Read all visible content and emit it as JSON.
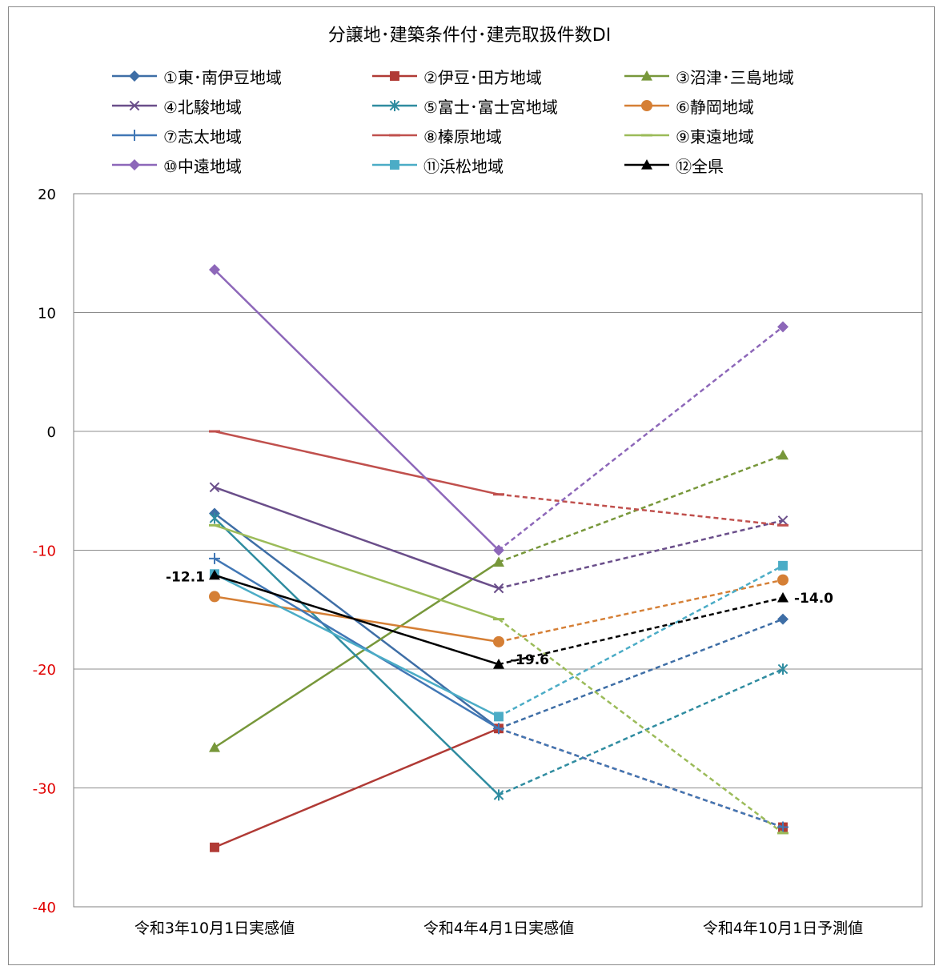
{
  "chart_data": {
    "type": "line",
    "title": "分譲地･建築条件付･建売取扱件数DI",
    "categories": [
      "令和3年10月1日実感値",
      "令和4年4月1日実感値",
      "令和4年10月1日予測値"
    ],
    "ylim": [
      -40,
      20
    ],
    "yticks": [
      "20",
      "10",
      "0",
      "-10",
      "-20",
      "-30",
      "-40"
    ],
    "grid": true,
    "legend_placement": "top",
    "forecast_style": "dashed",
    "series": [
      {
        "name": "①東･南伊豆地域",
        "values": [
          -6.9,
          -25.0,
          -15.8
        ],
        "color": "#3e6ea6",
        "marker": "diamond"
      },
      {
        "name": "②伊豆･田方地域",
        "values": [
          -35.0,
          -25.0,
          -33.3
        ],
        "color": "#b03a35",
        "marker": "square"
      },
      {
        "name": "③沼津･三島地域",
        "values": [
          -26.6,
          -11.0,
          -2.0
        ],
        "color": "#77973a",
        "marker": "triangle"
      },
      {
        "name": "④北駿地域",
        "values": [
          -4.7,
          -13.2,
          -7.5
        ],
        "color": "#6a4e8a",
        "marker": "x"
      },
      {
        "name": "⑤富士･富士宮地域",
        "values": [
          -7.3,
          -30.6,
          -20.0
        ],
        "color": "#2f8ca0",
        "marker": "star"
      },
      {
        "name": "⑥静岡地域",
        "values": [
          -13.9,
          -17.7,
          -12.5
        ],
        "color": "#d57f35",
        "marker": "circle"
      },
      {
        "name": "⑦志太地域",
        "values": [
          -10.7,
          -25.0,
          -33.3
        ],
        "color": "#4177b5",
        "marker": "plus"
      },
      {
        "name": "⑧榛原地域",
        "values": [
          0.0,
          -5.3,
          -7.9
        ],
        "color": "#c0504d",
        "marker": "dash"
      },
      {
        "name": "⑨東遠地域",
        "values": [
          -7.9,
          -15.8,
          -33.8
        ],
        "color": "#9bbb59",
        "marker": "dash"
      },
      {
        "name": "⑩中遠地域",
        "values": [
          13.6,
          -10.0,
          8.8
        ],
        "color": "#8d67b9",
        "marker": "diamond"
      },
      {
        "name": "⑪浜松地域",
        "values": [
          -12.0,
          -24.0,
          -11.3
        ],
        "color": "#4bacc6",
        "marker": "square"
      },
      {
        "name": "⑫全県",
        "values": [
          -12.1,
          -19.6,
          -14.0
        ],
        "color": "#000000",
        "marker": "triangle",
        "labels": [
          "-12.1",
          "-19.6",
          "-14.0"
        ]
      }
    ]
  }
}
